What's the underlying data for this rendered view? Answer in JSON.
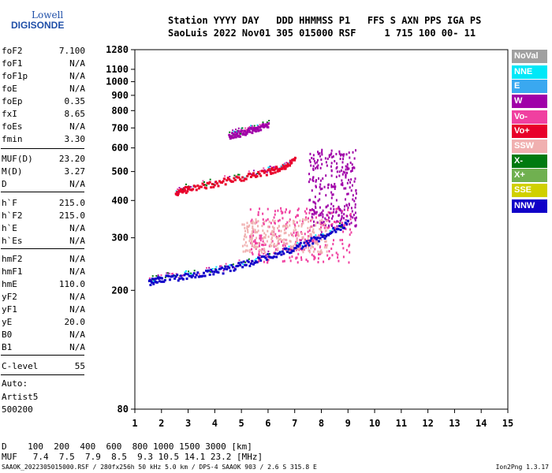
{
  "logo": {
    "line1": "Lowell",
    "line2": "DIGISONDE"
  },
  "header": {
    "line1": "Station YYYY DAY   DDD HHMMSS P1   FFS S AXN PPS IGA PS",
    "line2": "SaoLuis 2022 Nov01 305 015000 RSF     1 715 100 00- 11"
  },
  "params": [
    {
      "k": "foF2",
      "v": "7.100"
    },
    {
      "k": "foF1",
      "v": "N/A"
    },
    {
      "k": "foF1p",
      "v": "N/A"
    },
    {
      "k": "foE",
      "v": "N/A"
    },
    {
      "k": "foEp",
      "v": "0.35"
    },
    {
      "k": "fxI",
      "v": "8.65"
    },
    {
      "k": "foEs",
      "v": "N/A"
    },
    {
      "k": "fmin",
      "v": "3.30"
    },
    {
      "k": "MUF(D)",
      "v": "23.20"
    },
    {
      "k": "M(D)",
      "v": "3.27"
    },
    {
      "k": "D",
      "v": "N/A"
    },
    {
      "k": "h`F",
      "v": "215.0"
    },
    {
      "k": "h`F2",
      "v": "215.0"
    },
    {
      "k": "h`E",
      "v": "N/A"
    },
    {
      "k": "h`Es",
      "v": "N/A"
    },
    {
      "k": "hmF2",
      "v": "N/A"
    },
    {
      "k": "hmF1",
      "v": "N/A"
    },
    {
      "k": "hmE",
      "v": "110.0"
    },
    {
      "k": "yF2",
      "v": "N/A"
    },
    {
      "k": "yF1",
      "v": "N/A"
    },
    {
      "k": "yE",
      "v": "20.0"
    },
    {
      "k": "B0",
      "v": "N/A"
    },
    {
      "k": "B1",
      "v": "N/A"
    },
    {
      "k": "C-level",
      "v": "55"
    }
  ],
  "auto": {
    "line1": "Auto:",
    "line2": "Artist5",
    "line3": "500200"
  },
  "legend": [
    {
      "label": "NoVal",
      "color": "#a0a0a0"
    },
    {
      "label": "NNE",
      "color": "#00e8f8"
    },
    {
      "label": "E",
      "color": "#3aa8f0"
    },
    {
      "label": "W",
      "color": "#a000a8"
    },
    {
      "label": "Vo-",
      "color": "#f040a0"
    },
    {
      "label": "Vo+",
      "color": "#e8002a"
    },
    {
      "label": "SSW",
      "color": "#f0b0b0"
    },
    {
      "label": "X-",
      "color": "#007a10"
    },
    {
      "label": "X+",
      "color": "#70b050"
    },
    {
      "label": "SSE",
      "color": "#d0d000"
    },
    {
      "label": "NNW",
      "color": "#1000c8"
    }
  ],
  "chart_data": {
    "type": "scatter",
    "title": "",
    "xlabel": "",
    "ylabel": "",
    "xlim": [
      1,
      15
    ],
    "ylim": [
      80,
      1280
    ],
    "y_scale": "log",
    "x_ticks": [
      1,
      2,
      3,
      4,
      5,
      6,
      7,
      8,
      9,
      10,
      11,
      12,
      13,
      14,
      15
    ],
    "y_ticks": [
      80,
      200,
      300,
      400,
      500,
      600,
      700,
      800,
      900,
      1000,
      1100,
      1280
    ],
    "traces": [
      {
        "name": "F-trace virtual height",
        "color": "#1000c8",
        "points": [
          [
            1.5,
            215
          ],
          [
            2,
            220
          ],
          [
            3,
            225
          ],
          [
            4,
            232
          ],
          [
            5,
            245
          ],
          [
            6,
            262
          ],
          [
            7,
            280
          ],
          [
            8,
            305
          ],
          [
            9,
            340
          ]
        ]
      },
      {
        "name": "second hop",
        "color": "#e8002a",
        "points": [
          [
            2.5,
            430
          ],
          [
            3,
            440
          ],
          [
            4,
            460
          ],
          [
            5,
            480
          ],
          [
            6,
            505
          ],
          [
            6.5,
            520
          ],
          [
            7,
            550
          ]
        ]
      },
      {
        "name": "third hop",
        "color": "#a000a8",
        "points": [
          [
            4.5,
            660
          ],
          [
            5,
            680
          ],
          [
            5.5,
            700
          ],
          [
            6,
            720
          ]
        ]
      }
    ],
    "scatter_blocks": [
      {
        "x": [
          5.3,
          9.2
        ],
        "y": [
          250,
          380
        ],
        "color": "#f040a0"
      },
      {
        "x": [
          7.5,
          9.3
        ],
        "y": [
          330,
          600
        ],
        "color": "#a000a8"
      },
      {
        "x": [
          5.0,
          8.2
        ],
        "y": [
          270,
          350
        ],
        "color": "#f0b0b0"
      }
    ]
  },
  "bottom": {
    "d_line": "D    100  200  400  600  800 1000 1500 3000 [km]",
    "muf_line": "MUF   7.4  7.5  7.9  8.5  9.3 10.5 14.1 23.2 [MHz]"
  },
  "footer": {
    "left": "SAAOK_2022305015000.RSF / 280fx256h 50 kHz 5.0 km / DPS-4 SAAOK 903 / 2.6 S 315.8 E",
    "right": "Ion2Png 1.3.17"
  }
}
